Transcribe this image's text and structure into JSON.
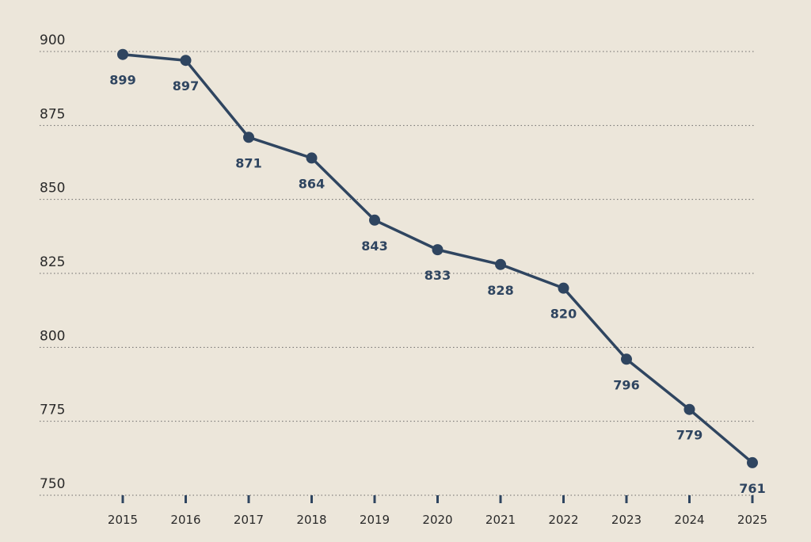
{
  "chart_data": {
    "type": "line",
    "x": [
      "2015",
      "2016",
      "2017",
      "2018",
      "2019",
      "2020",
      "2021",
      "2022",
      "2023",
      "2024",
      "2025"
    ],
    "series": [
      {
        "values": [
          899,
          897,
          871,
          864,
          843,
          833,
          828,
          820,
          796,
          779,
          761
        ]
      }
    ],
    "data_labels": [
      "899",
      "897",
      "871",
      "864",
      "843",
      "833",
      "828",
      "820",
      "796",
      "779",
      "761"
    ],
    "y_ticks": [
      "750",
      "775",
      "800",
      "825",
      "850",
      "875",
      "900"
    ],
    "ylim": [
      750,
      900
    ],
    "grid": "horizontal dotted",
    "title": "",
    "xlabel": "",
    "ylabel": ""
  },
  "colors": {
    "background": "#ece6da",
    "line": "#2f4560",
    "grid": "#6b6b6b",
    "tick_text": "#2a2a2a"
  }
}
